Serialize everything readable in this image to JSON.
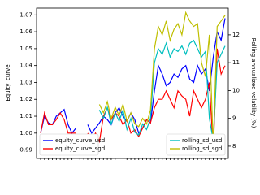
{
  "chart_data": {
    "type": "line",
    "y_label": "Equity_curve",
    "y2_label": "Rolling annualized volatility (%)",
    "categories": [
      null,
      null,
      null,
      null,
      null,
      null,
      null,
      null,
      null,
      null,
      null,
      null,
      null,
      null,
      null,
      null,
      null,
      null,
      null,
      null,
      null,
      null,
      null,
      null,
      null,
      null,
      null,
      null,
      null,
      null,
      null,
      null,
      null,
      null,
      null,
      null,
      null,
      null,
      null,
      null,
      null,
      null,
      null,
      null,
      null,
      null,
      null,
      null
    ],
    "series": [
      {
        "name": "equity_curve_usd",
        "color": "#0000ff",
        "values": [
          1.0,
          1.01,
          1.006,
          1.005,
          1.01,
          1.012,
          1.014,
          1.005,
          1.0,
          1.003,
          null,
          null,
          1.005,
          1.0,
          1.003,
          1.006,
          1.01,
          1.008,
          1.005,
          1.012,
          1.015,
          1.01,
          1.007,
          1.012,
          1.008,
          1.0,
          1.003,
          1.008,
          1.006,
          1.025,
          1.04,
          1.035,
          1.028,
          1.03,
          1.035,
          1.033,
          1.038,
          1.04,
          1.032,
          1.03,
          1.04,
          1.035,
          1.038,
          1.025,
          1.045,
          1.06,
          1.055,
          1.068
        ]
      },
      {
        "name": "equity_curve_sgd",
        "color": "#ff0000",
        "values": [
          1.0,
          1.012,
          1.005,
          1.005,
          1.008,
          1.012,
          1.008,
          1.0,
          1.0,
          1.0,
          null,
          null,
          1.0,
          0.996,
          1.0,
          0.995,
          1.01,
          1.015,
          1.008,
          1.012,
          1.01,
          1.005,
          1.008,
          1.0,
          1.002,
          0.998,
          1.003,
          1.008,
          1.006,
          1.015,
          1.02,
          1.02,
          1.025,
          1.02,
          1.015,
          1.025,
          1.022,
          1.02,
          1.01,
          1.025,
          1.02,
          1.015,
          1.02,
          1.03,
          0.99,
          1.05,
          1.035,
          1.04
        ]
      },
      {
        "name": "rolling_sd_usd",
        "color": "#00bfbf",
        "axis": "y2",
        "values": [
          null,
          null,
          null,
          null,
          null,
          null,
          null,
          null,
          null,
          null,
          null,
          null,
          null,
          null,
          null,
          9.3,
          9.0,
          9.4,
          8.8,
          9.2,
          8.9,
          9.3,
          8.6,
          9.0,
          8.5,
          8.4,
          8.8,
          8.6,
          9.0,
          11.0,
          11.5,
          11.3,
          11.7,
          11.2,
          11.5,
          11.4,
          11.6,
          11.3,
          11.7,
          11.8,
          11.5,
          11.2,
          11.4,
          9.0,
          8.2,
          11.0,
          11.3,
          11.6
        ]
      },
      {
        "name": "rolling_sd_sgd",
        "color": "#bfbf00",
        "axis": "y2",
        "values": [
          null,
          null,
          null,
          null,
          null,
          null,
          null,
          null,
          null,
          null,
          null,
          null,
          null,
          null,
          null,
          9.5,
          9.2,
          9.6,
          9.0,
          9.4,
          9.1,
          9.5,
          8.9,
          9.2,
          8.8,
          8.7,
          9.0,
          8.8,
          9.3,
          11.5,
          12.3,
          12.0,
          12.5,
          11.8,
          12.2,
          12.4,
          12.0,
          12.8,
          12.5,
          12.3,
          12.4,
          11.0,
          10.5,
          12.0,
          8.0,
          12.3,
          12.5,
          12.7
        ]
      }
    ],
    "ylim": [
      0.985,
      1.074
    ],
    "yticks": [
      0.99,
      {
        "value": 1,
        "label": "1.00"
      },
      1.01,
      1.02,
      1.03,
      1.04,
      1.05,
      1.06,
      1.07
    ],
    "y2lim": [
      7.56,
      12.96
    ],
    "y2ticks": [
      8,
      9,
      10,
      11,
      12
    ],
    "legend": "lower left",
    "legend2": "lower right"
  }
}
